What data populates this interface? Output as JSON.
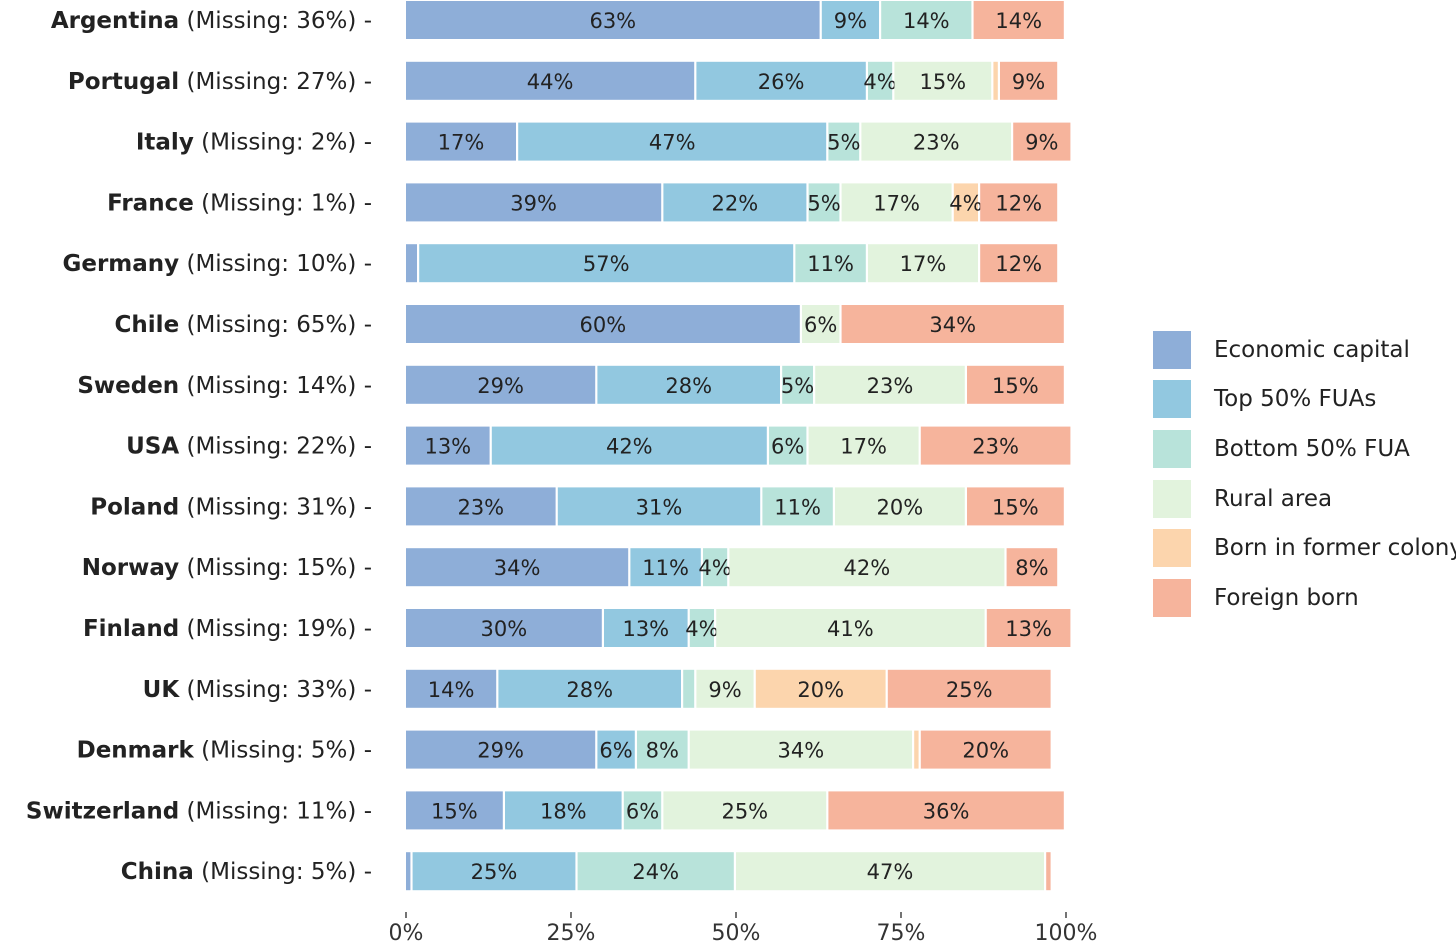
{
  "chart_data": {
    "type": "bar",
    "orientation": "horizontal",
    "stacked": true,
    "percent_scale": true,
    "xlim": [
      0,
      100
    ],
    "x_ticks": [
      "0%",
      "25%",
      "50%",
      "75%",
      "100%"
    ],
    "grid": false,
    "legend_position": "right",
    "title": "",
    "xlabel": "",
    "ylabel": "",
    "series": [
      {
        "name": "Economic capital",
        "color": "#8eaed8"
      },
      {
        "name": "Top 50% FUAs",
        "color": "#92c8e0"
      },
      {
        "name": "Bottom 50% FUA",
        "color": "#b8e3da"
      },
      {
        "name": "Rural area",
        "color": "#e2f3dd"
      },
      {
        "name": "Born in former colony",
        "color": "#fcd5ad"
      },
      {
        "name": "Foreign born",
        "color": "#f6b49c"
      }
    ],
    "rows": [
      {
        "country": "Argentina",
        "missing": "(Missing: 36%) -",
        "values": [
          63,
          9,
          14,
          0,
          0,
          14
        ],
        "labels": [
          "63%",
          "9%",
          "14%",
          "",
          "",
          "14%"
        ]
      },
      {
        "country": "Portugal",
        "missing": "(Missing: 27%) -",
        "values": [
          44,
          26,
          4,
          15,
          1,
          9
        ],
        "labels": [
          "44%",
          "26%",
          "4%",
          "15%",
          "",
          "9%"
        ]
      },
      {
        "country": "Italy",
        "missing": "(Missing: 2%) -",
        "values": [
          17,
          47,
          5,
          23,
          0,
          9
        ],
        "labels": [
          "17%",
          "47%",
          "5%",
          "23%",
          "",
          "9%"
        ]
      },
      {
        "country": "France",
        "missing": "(Missing: 1%) -",
        "values": [
          39,
          22,
          5,
          17,
          4,
          12
        ],
        "labels": [
          "39%",
          "22%",
          "5%",
          "17%",
          "4%",
          "12%"
        ]
      },
      {
        "country": "Germany",
        "missing": "(Missing: 10%) -",
        "values": [
          2,
          57,
          11,
          17,
          0,
          12
        ],
        "labels": [
          "",
          "57%",
          "11%",
          "17%",
          "",
          "12%"
        ]
      },
      {
        "country": "Chile",
        "missing": "(Missing: 65%) -",
        "values": [
          60,
          0,
          0,
          6,
          0,
          34
        ],
        "labels": [
          "60%",
          "",
          "",
          "6%",
          "",
          "34%"
        ]
      },
      {
        "country": "Sweden",
        "missing": "(Missing: 14%) -",
        "values": [
          29,
          28,
          5,
          23,
          0,
          15
        ],
        "labels": [
          "29%",
          "28%",
          "5%",
          "23%",
          "",
          "15%"
        ]
      },
      {
        "country": "USA",
        "missing": "(Missing: 22%) -",
        "values": [
          13,
          42,
          6,
          17,
          0,
          23
        ],
        "labels": [
          "13%",
          "42%",
          "6%",
          "17%",
          "",
          "23%"
        ]
      },
      {
        "country": "Poland",
        "missing": "(Missing: 31%) -",
        "values": [
          23,
          31,
          11,
          20,
          0,
          15
        ],
        "labels": [
          "23%",
          "31%",
          "11%",
          "20%",
          "",
          "15%"
        ]
      },
      {
        "country": "Norway",
        "missing": "(Missing: 15%) -",
        "values": [
          34,
          11,
          4,
          42,
          0,
          8
        ],
        "labels": [
          "34%",
          "11%",
          "4%",
          "42%",
          "",
          "8%"
        ]
      },
      {
        "country": "Finland",
        "missing": "(Missing: 19%) -",
        "values": [
          30,
          13,
          4,
          41,
          0,
          13
        ],
        "labels": [
          "30%",
          "13%",
          "4%",
          "41%",
          "",
          "13%"
        ]
      },
      {
        "country": "UK",
        "missing": "(Missing: 33%) -",
        "values": [
          14,
          28,
          2,
          9,
          20,
          25
        ],
        "labels": [
          "14%",
          "28%",
          "",
          "9%",
          "20%",
          "25%"
        ]
      },
      {
        "country": "Denmark",
        "missing": "(Missing: 5%) -",
        "values": [
          29,
          6,
          8,
          34,
          1,
          20
        ],
        "labels": [
          "29%",
          "6%",
          "8%",
          "34%",
          "",
          "20%"
        ]
      },
      {
        "country": "Switzerland",
        "missing": "(Missing: 11%) -",
        "values": [
          15,
          18,
          6,
          25,
          0,
          36
        ],
        "labels": [
          "15%",
          "18%",
          "6%",
          "25%",
          "",
          "36%"
        ]
      },
      {
        "country": "China",
        "missing": "(Missing: 5%) -",
        "values": [
          1,
          25,
          24,
          47,
          0,
          1
        ],
        "labels": [
          "",
          "25%",
          "24%",
          "47%",
          "",
          ""
        ]
      }
    ]
  }
}
